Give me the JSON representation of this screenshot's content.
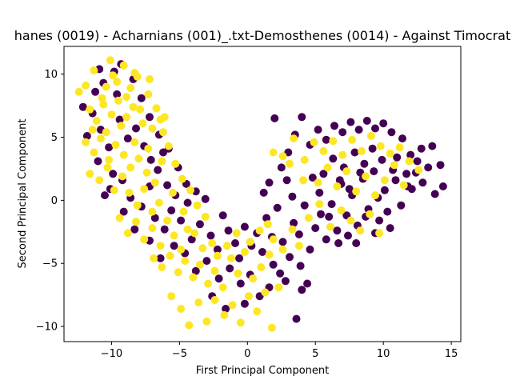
{
  "chart_data": {
    "type": "scatter",
    "title": "hanes (0019) - Acharnians (001)_.txt-Demosthenes (0014) - Against Timocrat",
    "xlabel": "First Principal Component",
    "ylabel": "Second Principal Component",
    "xlim": [
      -13.5,
      15.7
    ],
    "ylim": [
      -11.2,
      12.2
    ],
    "xticks": [
      -10,
      -5,
      0,
      5,
      10,
      15
    ],
    "yticks": [
      -10,
      -5,
      0,
      5,
      10
    ],
    "grid": false,
    "legend": "none",
    "series": [
      {
        "color": "#440154",
        "points": [
          [
            -11.2,
            8.6
          ],
          [
            -10.6,
            9.3
          ],
          [
            -9.8,
            10.2
          ],
          [
            -9.6,
            8.4
          ],
          [
            -11.4,
            6.9
          ],
          [
            -10.8,
            5.6
          ],
          [
            -10.2,
            4.2
          ],
          [
            -9.4,
            6.4
          ],
          [
            -8.8,
            4.9
          ],
          [
            -8.2,
            5.7
          ],
          [
            -7.6,
            4.3
          ],
          [
            -7.1,
            3.2
          ],
          [
            -6.6,
            2.4
          ],
          [
            -6.2,
            3.8
          ],
          [
            -5.9,
            1.2
          ],
          [
            -5.3,
            0.4
          ],
          [
            -9.9,
            2.1
          ],
          [
            -10.5,
            0.4
          ],
          [
            -9.2,
            1.6
          ],
          [
            -8.6,
            0.2
          ],
          [
            -7.8,
            -0.5
          ],
          [
            -7.2,
            1.1
          ],
          [
            -6.8,
            -1.4
          ],
          [
            -6.1,
            -2.3
          ],
          [
            -5.6,
            -0.8
          ],
          [
            -4.9,
            -1.6
          ],
          [
            -4.4,
            -0.2
          ],
          [
            -4.1,
            -3.1
          ],
          [
            -3.5,
            -1.9
          ],
          [
            -3.1,
            0.1
          ],
          [
            -2.7,
            -2.8
          ],
          [
            -2.2,
            -3.9
          ],
          [
            -1.8,
            -1.2
          ],
          [
            -1.4,
            -2.4
          ],
          [
            -0.9,
            -3.4
          ],
          [
            -0.6,
            -4.6
          ],
          [
            -0.2,
            -2.1
          ],
          [
            0.3,
            -3.6
          ],
          [
            0.7,
            -2.6
          ],
          [
            1.1,
            -4.1
          ],
          [
            1.4,
            -1.4
          ],
          [
            1.8,
            -2.9
          ],
          [
            2.2,
            -0.6
          ],
          [
            2.6,
            -3.3
          ],
          [
            3.1,
            -4.5
          ],
          [
            3.4,
            -1.8
          ],
          [
            3.8,
            -2.7
          ],
          [
            4.2,
            -0.4
          ],
          [
            4.6,
            -3.9
          ],
          [
            5.0,
            -2.2
          ],
          [
            5.4,
            -1.1
          ],
          [
            5.8,
            -3.1
          ],
          [
            6.2,
            -0.3
          ],
          [
            6.6,
            -2.4
          ],
          [
            6.9,
            1.3
          ],
          [
            7.3,
            -1.2
          ],
          [
            7.7,
            0.4
          ],
          [
            8.1,
            -2.0
          ],
          [
            8.5,
            1.7
          ],
          [
            8.9,
            -0.7
          ],
          [
            9.3,
            2.3
          ],
          [
            9.7,
            -1.6
          ],
          [
            10.1,
            0.8
          ],
          [
            10.5,
            -2.2
          ],
          [
            10.9,
            1.6
          ],
          [
            11.3,
            -0.4
          ],
          [
            11.7,
            2.1
          ],
          [
            12.1,
            0.9
          ],
          [
            12.5,
            3.1
          ],
          [
            12.9,
            1.4
          ],
          [
            13.3,
            2.6
          ],
          [
            13.8,
            0.5
          ],
          [
            14.2,
            2.8
          ],
          [
            14.4,
            1.1
          ],
          [
            13.6,
            4.3
          ],
          [
            12.8,
            4.1
          ],
          [
            12.0,
            3.6
          ],
          [
            11.4,
            4.9
          ],
          [
            10.6,
            5.4
          ],
          [
            10.0,
            6.1
          ],
          [
            9.4,
            5.7
          ],
          [
            8.8,
            6.3
          ],
          [
            8.2,
            5.6
          ],
          [
            7.6,
            6.2
          ],
          [
            7.0,
            5.4
          ],
          [
            6.4,
            5.9
          ],
          [
            5.8,
            4.8
          ],
          [
            5.2,
            5.6
          ],
          [
            4.6,
            4.4
          ],
          [
            4.0,
            6.6
          ],
          [
            3.5,
            5.2
          ],
          [
            3.0,
            3.8
          ],
          [
            2.5,
            2.6
          ],
          [
            2.0,
            6.5
          ],
          [
            1.6,
            1.4
          ],
          [
            1.2,
            0.6
          ],
          [
            5.6,
            2.1
          ],
          [
            6.3,
            3.3
          ],
          [
            7.1,
            2.6
          ],
          [
            7.9,
            3.8
          ],
          [
            8.6,
            2.9
          ],
          [
            9.2,
            4.1
          ],
          [
            9.9,
            3.2
          ],
          [
            10.7,
            2.4
          ],
          [
            6.8,
            1.6
          ],
          [
            7.5,
            0.9
          ],
          [
            8.3,
            2.2
          ],
          [
            9.6,
            0.2
          ],
          [
            10.3,
            -0.9
          ],
          [
            11.0,
            3.4
          ],
          [
            11.8,
            1.1
          ],
          [
            12.4,
            2.2
          ],
          [
            3.9,
            -5.2
          ],
          [
            4.4,
            -6.6
          ],
          [
            3.6,
            -9.4
          ],
          [
            2.4,
            -5.8
          ],
          [
            1.6,
            -6.9
          ],
          [
            0.9,
            -7.6
          ],
          [
            0.2,
            -5.9
          ],
          [
            -0.5,
            -6.6
          ],
          [
            -1.3,
            -5.4
          ],
          [
            -2.1,
            -6.2
          ],
          [
            -3.0,
            -4.8
          ],
          [
            -3.8,
            -5.6
          ],
          [
            -4.6,
            -4.2
          ],
          [
            -5.4,
            -3.6
          ],
          [
            -6.4,
            -4.6
          ],
          [
            -7.2,
            -3.2
          ],
          [
            -8.3,
            -2.3
          ],
          [
            -9.1,
            -0.9
          ],
          [
            -10.1,
            0.9
          ],
          [
            -11.0,
            3.1
          ],
          [
            -11.8,
            5.1
          ],
          [
            -12.1,
            7.4
          ],
          [
            -10.9,
            10.4
          ],
          [
            -9.3,
            10.8
          ],
          [
            -8.4,
            9.6
          ],
          [
            -7.8,
            8.1
          ],
          [
            -7.2,
            6.6
          ],
          [
            -6.5,
            5.2
          ],
          [
            -5.8,
            4.1
          ],
          [
            -5.1,
            2.6
          ],
          [
            -4.5,
            1.3
          ],
          [
            -3.8,
            0.7
          ],
          [
            2.9,
            1.6
          ],
          [
            3.3,
            0.3
          ],
          [
            4.8,
            1.8
          ],
          [
            5.3,
            0.6
          ],
          [
            6.0,
            -1.3
          ],
          [
            6.7,
            -3.4
          ],
          [
            7.4,
            -2.8
          ],
          [
            8.0,
            -3.4
          ],
          [
            8.7,
            -1.3
          ],
          [
            9.4,
            -2.6
          ],
          [
            1.9,
            -5.1
          ],
          [
            2.8,
            -6.4
          ],
          [
            4.0,
            -7.1
          ],
          [
            -1.6,
            -8.6
          ],
          [
            -2.6,
            -7.6
          ],
          [
            -0.2,
            -8.2
          ]
        ]
      },
      {
        "color": "#fde725",
        "points": [
          [
            -12.4,
            8.6
          ],
          [
            -11.9,
            9.1
          ],
          [
            -11.3,
            10.3
          ],
          [
            -10.7,
            8.1
          ],
          [
            -10.1,
            11.1
          ],
          [
            -9.6,
            9.4
          ],
          [
            -9.1,
            10.7
          ],
          [
            -8.6,
            8.9
          ],
          [
            -8.1,
            9.8
          ],
          [
            -7.2,
            9.6
          ],
          [
            -11.6,
            7.2
          ],
          [
            -11.1,
            6.3
          ],
          [
            -10.6,
            7.6
          ],
          [
            -10.0,
            6.8
          ],
          [
            -9.5,
            7.9
          ],
          [
            -8.9,
            6.6
          ],
          [
            -8.4,
            7.4
          ],
          [
            -7.7,
            6.1
          ],
          [
            -7.0,
            5.7
          ],
          [
            -6.4,
            6.4
          ],
          [
            -11.9,
            4.6
          ],
          [
            -11.3,
            3.8
          ],
          [
            -10.8,
            4.9
          ],
          [
            -10.2,
            3.2
          ],
          [
            -9.7,
            4.4
          ],
          [
            -9.1,
            3.6
          ],
          [
            -8.6,
            2.6
          ],
          [
            -8.0,
            3.3
          ],
          [
            -7.4,
            2.2
          ],
          [
            -6.8,
            1.4
          ],
          [
            -11.6,
            2.1
          ],
          [
            -10.9,
            1.6
          ],
          [
            -10.3,
            2.6
          ],
          [
            -9.8,
            0.8
          ],
          [
            -9.2,
            1.9
          ],
          [
            -8.7,
            0.6
          ],
          [
            -8.1,
            -0.4
          ],
          [
            -7.6,
            0.9
          ],
          [
            -7.0,
            -0.9
          ],
          [
            -6.5,
            -0.2
          ],
          [
            -9.4,
            -1.4
          ],
          [
            -8.8,
            -2.6
          ],
          [
            -8.2,
            -1.7
          ],
          [
            -7.6,
            -3.1
          ],
          [
            -7.0,
            -2.2
          ],
          [
            -6.4,
            -3.6
          ],
          [
            -5.9,
            -1.6
          ],
          [
            -5.4,
            -2.8
          ],
          [
            -4.9,
            -3.9
          ],
          [
            -4.4,
            -2.3
          ],
          [
            -6.9,
            -4.6
          ],
          [
            -6.3,
            -5.3
          ],
          [
            -5.7,
            -4.4
          ],
          [
            -5.1,
            -5.7
          ],
          [
            -4.6,
            -4.8
          ],
          [
            -4.0,
            -6.1
          ],
          [
            -3.5,
            -5.1
          ],
          [
            -2.9,
            -6.6
          ],
          [
            -2.4,
            -5.6
          ],
          [
            -1.8,
            -6.9
          ],
          [
            -5.6,
            -7.6
          ],
          [
            -4.9,
            -8.6
          ],
          [
            -4.3,
            -9.9
          ],
          [
            -3.6,
            -8.1
          ],
          [
            -3.0,
            -9.6
          ],
          [
            -2.4,
            -7.9
          ],
          [
            -1.7,
            -9.1
          ],
          [
            -1.1,
            -8.3
          ],
          [
            -0.5,
            -9.7
          ],
          [
            0.1,
            -7.6
          ],
          [
            0.7,
            -8.8
          ],
          [
            1.3,
            -7.3
          ],
          [
            1.8,
            -10.1
          ],
          [
            2.3,
            -6.9
          ],
          [
            -1.2,
            -4.6
          ],
          [
            -0.7,
            -5.8
          ],
          [
            -0.2,
            -4.1
          ],
          [
            0.4,
            -6.2
          ],
          [
            1.0,
            -5.3
          ],
          [
            1.6,
            -4.3
          ],
          [
            -2.6,
            -3.4
          ],
          [
            -3.1,
            -1.3
          ],
          [
            -3.7,
            -0.4
          ],
          [
            -4.2,
            0.8
          ],
          [
            -4.8,
            1.7
          ],
          [
            -5.3,
            2.9
          ],
          [
            -5.8,
            4.3
          ],
          [
            -6.2,
            5.4
          ],
          [
            -6.7,
            7.3
          ],
          [
            -7.3,
            8.4
          ],
          [
            1.9,
            3.8
          ],
          [
            2.6,
            3.5
          ],
          [
            3.4,
            4.9
          ],
          [
            4.2,
            3.2
          ],
          [
            4.9,
            4.6
          ],
          [
            5.6,
            3.9
          ],
          [
            6.3,
            4.7
          ],
          [
            7.0,
            3.6
          ],
          [
            7.7,
            4.8
          ],
          [
            8.4,
            3.9
          ],
          [
            9.1,
            5.1
          ],
          [
            9.8,
            4.3
          ],
          [
            10.5,
            3.7
          ],
          [
            11.2,
            4.2
          ],
          [
            11.9,
            3.1
          ],
          [
            12.6,
            2.4
          ],
          [
            5.2,
            1.4
          ],
          [
            5.9,
            2.6
          ],
          [
            6.6,
            1.1
          ],
          [
            7.3,
            2.3
          ],
          [
            8.0,
            0.7
          ],
          [
            8.7,
            1.9
          ],
          [
            9.4,
            0.4
          ],
          [
            10.1,
            1.6
          ],
          [
            10.8,
            2.8
          ],
          [
            11.5,
            1.2
          ],
          [
            4.5,
            -1.4
          ],
          [
            5.3,
            -0.3
          ],
          [
            6.1,
            -2.1
          ],
          [
            6.9,
            -0.8
          ],
          [
            7.6,
            -1.6
          ],
          [
            8.3,
            -2.4
          ],
          [
            9.0,
            -1.1
          ],
          [
            9.7,
            -2.6
          ],
          [
            3.3,
            -2.3
          ],
          [
            2.6,
            -3.9
          ],
          [
            1.9,
            -3.1
          ],
          [
            3.8,
            -3.6
          ],
          [
            -11.4,
            5.6
          ],
          [
            -10.4,
            5.4
          ],
          [
            -9.3,
            5.9
          ],
          [
            -8.3,
            4.6
          ],
          [
            -7.3,
            4.1
          ],
          [
            -6.3,
            3.1
          ],
          [
            -5.5,
            0.6
          ],
          [
            -4.7,
            -0.9
          ],
          [
            -3.9,
            -2.6
          ],
          [
            -3.3,
            -3.8
          ],
          [
            -2.2,
            -4.4
          ],
          [
            -1.5,
            -3.6
          ],
          [
            -0.8,
            -2.6
          ],
          [
            0.2,
            -3.3
          ],
          [
            0.9,
            -2.4
          ],
          [
            1.5,
            -1.9
          ],
          [
            -9.9,
            9.9
          ],
          [
            -10.4,
            9.0
          ],
          [
            -8.9,
            8.2
          ],
          [
            -8.3,
            10.1
          ],
          [
            -7.9,
            7.2
          ],
          [
            -6.1,
            6.6
          ],
          [
            3.1,
            2.9
          ],
          [
            4.1,
            1.6
          ]
        ]
      }
    ]
  }
}
